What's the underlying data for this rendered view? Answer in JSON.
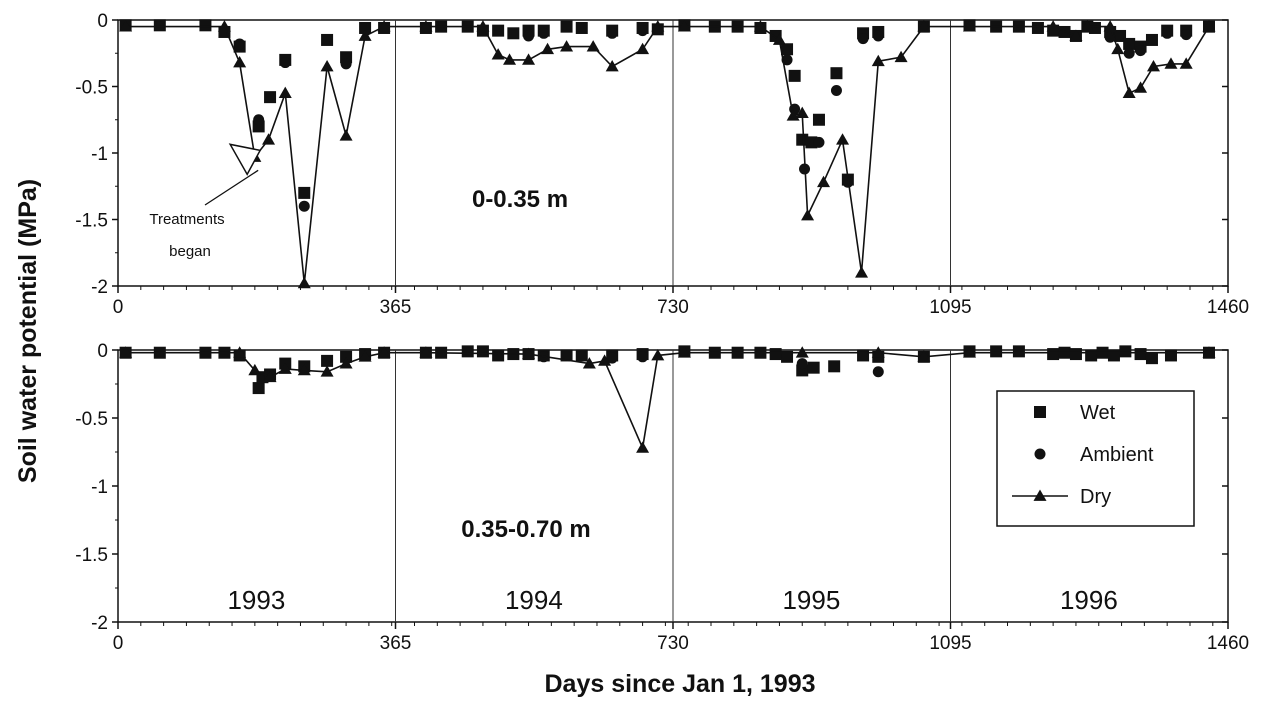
{
  "chart_data": {
    "type": "scatter",
    "ylabel": "Soil water potential (MPa)",
    "xlabel": "Days since Jan 1, 1993",
    "xlim": [
      0,
      1460
    ],
    "ylim": [
      -2,
      0
    ],
    "xticks": [
      "0",
      "365",
      "730",
      "1095",
      "1460"
    ],
    "yticks": [
      "0",
      "-0.5",
      "-1",
      "-1.5",
      "-2"
    ],
    "year_dividers": [
      365,
      730,
      1095
    ],
    "legend": {
      "placement": "lower-panel-right",
      "entries": [
        {
          "series": "Wet",
          "label": "Wet"
        },
        {
          "series": "Ambient",
          "label": "Ambient"
        },
        {
          "series": "Dry",
          "label": "Dry"
        }
      ]
    },
    "panels": [
      {
        "label": "0-0.35 m",
        "annotation": {
          "line1": "Treatments",
          "line2": "began",
          "x": 187,
          "y": -0.98
        },
        "series": [
          {
            "name": "Wet",
            "marker": "square",
            "line": false,
            "points": [
              [
                10,
                -0.04
              ],
              [
                55,
                -0.04
              ],
              [
                115,
                -0.04
              ],
              [
                140,
                -0.09
              ],
              [
                160,
                -0.2
              ],
              [
                185,
                -0.8
              ],
              [
                200,
                -0.58
              ],
              [
                220,
                -0.3
              ],
              [
                245,
                -1.3
              ],
              [
                275,
                -0.15
              ],
              [
                300,
                -0.28
              ],
              [
                325,
                -0.06
              ],
              [
                350,
                -0.06
              ],
              [
                405,
                -0.06
              ],
              [
                425,
                -0.05
              ],
              [
                460,
                -0.05
              ],
              [
                480,
                -0.08
              ],
              [
                500,
                -0.08
              ],
              [
                520,
                -0.1
              ],
              [
                540,
                -0.08
              ],
              [
                560,
                -0.08
              ],
              [
                590,
                -0.05
              ],
              [
                610,
                -0.06
              ],
              [
                650,
                -0.08
              ],
              [
                690,
                -0.06
              ],
              [
                710,
                -0.07
              ],
              [
                745,
                -0.04
              ],
              [
                785,
                -0.05
              ],
              [
                815,
                -0.05
              ],
              [
                845,
                -0.06
              ],
              [
                865,
                -0.12
              ],
              [
                880,
                -0.22
              ],
              [
                890,
                -0.42
              ],
              [
                900,
                -0.9
              ],
              [
                912,
                -0.92
              ],
              [
                922,
                -0.75
              ],
              [
                945,
                -0.4
              ],
              [
                960,
                -1.2
              ],
              [
                980,
                -0.1
              ],
              [
                1000,
                -0.09
              ],
              [
                1060,
                -0.05
              ],
              [
                1120,
                -0.04
              ],
              [
                1155,
                -0.05
              ],
              [
                1185,
                -0.05
              ],
              [
                1210,
                -0.06
              ],
              [
                1230,
                -0.08
              ],
              [
                1245,
                -0.09
              ],
              [
                1260,
                -0.12
              ],
              [
                1275,
                -0.05
              ],
              [
                1285,
                -0.06
              ],
              [
                1305,
                -0.09
              ],
              [
                1318,
                -0.12
              ],
              [
                1330,
                -0.18
              ],
              [
                1345,
                -0.2
              ],
              [
                1360,
                -0.15
              ],
              [
                1380,
                -0.08
              ],
              [
                1405,
                -0.08
              ],
              [
                1435,
                -0.05
              ]
            ]
          },
          {
            "name": "Ambient",
            "marker": "circle",
            "line": false,
            "points": [
              [
                160,
                -0.18
              ],
              [
                185,
                -0.75
              ],
              [
                220,
                -0.32
              ],
              [
                245,
                -1.4
              ],
              [
                300,
                -0.33
              ],
              [
                520,
                -0.1
              ],
              [
                540,
                -0.12
              ],
              [
                560,
                -0.1
              ],
              [
                650,
                -0.1
              ],
              [
                690,
                -0.08
              ],
              [
                880,
                -0.3
              ],
              [
                890,
                -0.67
              ],
              [
                903,
                -1.12
              ],
              [
                922,
                -0.92
              ],
              [
                945,
                -0.53
              ],
              [
                960,
                -1.22
              ],
              [
                980,
                -0.14
              ],
              [
                1000,
                -0.12
              ],
              [
                1305,
                -0.13
              ],
              [
                1330,
                -0.25
              ],
              [
                1345,
                -0.23
              ],
              [
                1380,
                -0.1
              ],
              [
                1405,
                -0.11
              ]
            ]
          },
          {
            "name": "Dry",
            "marker": "triangle",
            "line": true,
            "points": [
              [
                10,
                -0.05
              ],
              [
                140,
                -0.05
              ],
              [
                160,
                -0.32
              ],
              [
                180,
                -1.03
              ],
              [
                198,
                -0.9
              ],
              [
                220,
                -0.55
              ],
              [
                245,
                -1.98
              ],
              [
                275,
                -0.35
              ],
              [
                300,
                -0.87
              ],
              [
                325,
                -0.12
              ],
              [
                350,
                -0.05
              ],
              [
                405,
                -0.05
              ],
              [
                480,
                -0.05
              ],
              [
                500,
                -0.26
              ],
              [
                515,
                -0.3
              ],
              [
                540,
                -0.3
              ],
              [
                565,
                -0.22
              ],
              [
                590,
                -0.2
              ],
              [
                625,
                -0.2
              ],
              [
                650,
                -0.35
              ],
              [
                690,
                -0.22
              ],
              [
                710,
                -0.05
              ],
              [
                745,
                -0.05
              ],
              [
                845,
                -0.05
              ],
              [
                870,
                -0.15
              ],
              [
                888,
                -0.72
              ],
              [
                900,
                -0.7
              ],
              [
                907,
                -1.47
              ],
              [
                928,
                -1.22
              ],
              [
                953,
                -0.9
              ],
              [
                978,
                -1.9
              ],
              [
                1000,
                -0.31
              ],
              [
                1030,
                -0.28
              ],
              [
                1060,
                -0.05
              ],
              [
                1120,
                -0.05
              ],
              [
                1230,
                -0.05
              ],
              [
                1260,
                -0.12
              ],
              [
                1275,
                -0.05
              ],
              [
                1305,
                -0.05
              ],
              [
                1315,
                -0.22
              ],
              [
                1330,
                -0.55
              ],
              [
                1345,
                -0.51
              ],
              [
                1362,
                -0.35
              ],
              [
                1385,
                -0.33
              ],
              [
                1405,
                -0.33
              ],
              [
                1435,
                -0.05
              ]
            ]
          }
        ]
      },
      {
        "label": "0.35-0.70 m",
        "year_labels": [
          {
            "label": "1993",
            "x": 182
          },
          {
            "label": "1994",
            "x": 547
          },
          {
            "label": "1995",
            "x": 912
          },
          {
            "label": "1996",
            "x": 1277
          }
        ],
        "series": [
          {
            "name": "Wet",
            "marker": "square",
            "line": false,
            "points": [
              [
                10,
                -0.02
              ],
              [
                55,
                -0.02
              ],
              [
                115,
                -0.02
              ],
              [
                140,
                -0.02
              ],
              [
                160,
                -0.04
              ],
              [
                185,
                -0.28
              ],
              [
                190,
                -0.2
              ],
              [
                200,
                -0.18
              ],
              [
                220,
                -0.1
              ],
              [
                245,
                -0.12
              ],
              [
                275,
                -0.08
              ],
              [
                300,
                -0.05
              ],
              [
                325,
                -0.03
              ],
              [
                350,
                -0.02
              ],
              [
                405,
                -0.02
              ],
              [
                425,
                -0.02
              ],
              [
                460,
                -0.01
              ],
              [
                480,
                -0.01
              ],
              [
                500,
                -0.04
              ],
              [
                520,
                -0.03
              ],
              [
                540,
                -0.03
              ],
              [
                560,
                -0.04
              ],
              [
                590,
                -0.04
              ],
              [
                610,
                -0.04
              ],
              [
                650,
                -0.04
              ],
              [
                690,
                -0.03
              ],
              [
                745,
                -0.01
              ],
              [
                785,
                -0.02
              ],
              [
                815,
                -0.02
              ],
              [
                845,
                -0.02
              ],
              [
                865,
                -0.03
              ],
              [
                880,
                -0.05
              ],
              [
                900,
                -0.15
              ],
              [
                915,
                -0.13
              ],
              [
                942,
                -0.12
              ],
              [
                980,
                -0.04
              ],
              [
                1000,
                -0.05
              ],
              [
                1060,
                -0.05
              ],
              [
                1120,
                -0.01
              ],
              [
                1155,
                -0.01
              ],
              [
                1185,
                -0.01
              ],
              [
                1230,
                -0.03
              ],
              [
                1245,
                -0.02
              ],
              [
                1260,
                -0.03
              ],
              [
                1280,
                -0.04
              ],
              [
                1295,
                -0.02
              ],
              [
                1310,
                -0.04
              ],
              [
                1325,
                -0.01
              ],
              [
                1345,
                -0.03
              ],
              [
                1360,
                -0.06
              ],
              [
                1385,
                -0.04
              ],
              [
                1435,
                -0.02
              ]
            ]
          },
          {
            "name": "Ambient",
            "marker": "circle",
            "line": false,
            "points": [
              [
                560,
                -0.05
              ],
              [
                650,
                -0.06
              ],
              [
                690,
                -0.05
              ],
              [
                900,
                -0.1
              ],
              [
                1000,
                -0.16
              ]
            ]
          },
          {
            "name": "Dry",
            "marker": "triangle",
            "line": true,
            "points": [
              [
                10,
                -0.02
              ],
              [
                160,
                -0.02
              ],
              [
                180,
                -0.15
              ],
              [
                200,
                -0.2
              ],
              [
                220,
                -0.14
              ],
              [
                245,
                -0.15
              ],
              [
                275,
                -0.16
              ],
              [
                300,
                -0.1
              ],
              [
                325,
                -0.05
              ],
              [
                350,
                -0.02
              ],
              [
                405,
                -0.02
              ],
              [
                540,
                -0.03
              ],
              [
                620,
                -0.1
              ],
              [
                640,
                -0.08
              ],
              [
                690,
                -0.72
              ],
              [
                710,
                -0.04
              ],
              [
                745,
                -0.02
              ],
              [
                900,
                -0.02
              ],
              [
                1000,
                -0.02
              ],
              [
                1060,
                -0.05
              ],
              [
                1120,
                -0.02
              ],
              [
                1435,
                -0.02
              ]
            ]
          }
        ]
      }
    ]
  }
}
